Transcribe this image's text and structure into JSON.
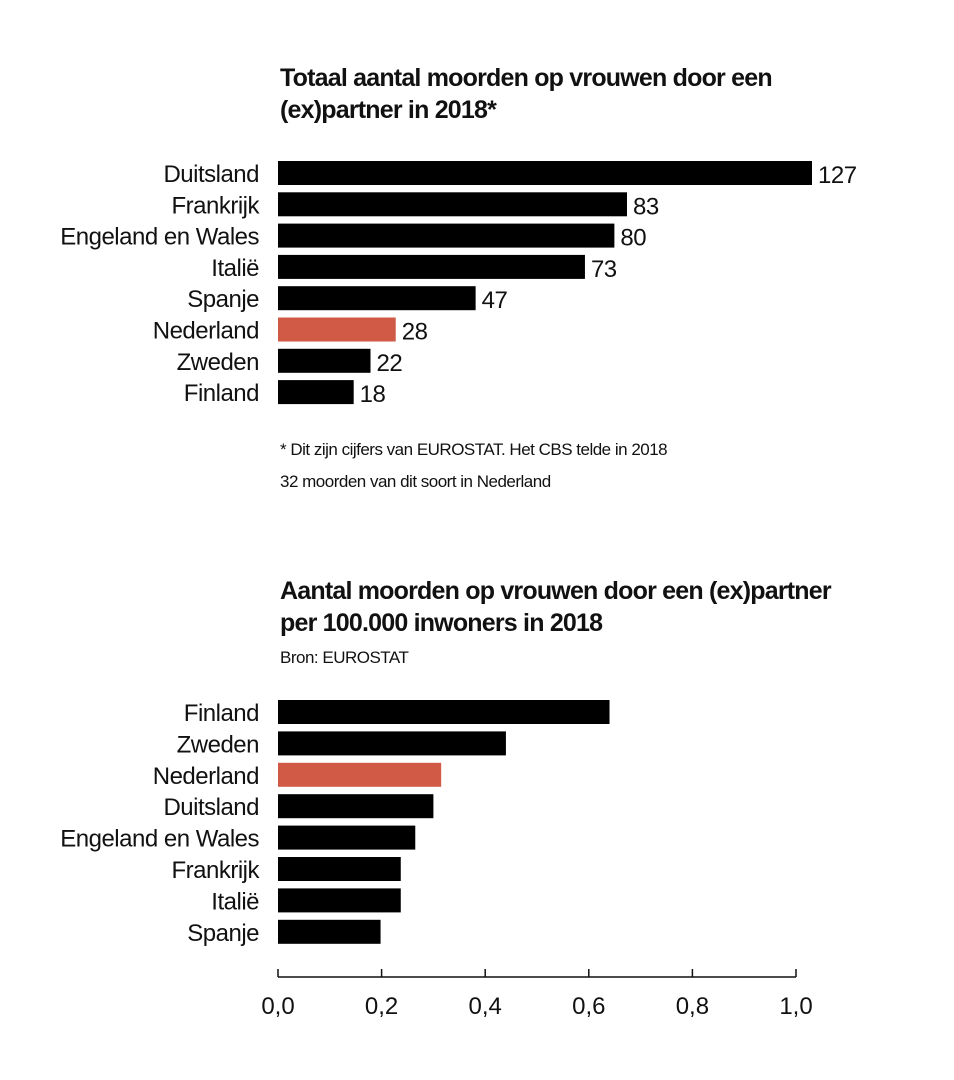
{
  "colors": {
    "bar": "#000000",
    "highlight": "#d05a45"
  },
  "chart_data": [
    {
      "type": "bar",
      "orientation": "horizontal",
      "title": "Totaal aantal moorden op vrouwen door een (ex)partner in 2018*",
      "categories": [
        "Duitsland",
        "Frankrijk",
        "Engeland en Wales",
        "Italië",
        "Spanje",
        "Nederland",
        "Zweden",
        "Finland"
      ],
      "values": [
        127,
        83,
        80,
        73,
        47,
        28,
        22,
        18
      ],
      "highlight": "Nederland",
      "data_labels": true,
      "xlim": [
        0,
        127
      ],
      "footnote_lines": [
        "* Dit zijn cijfers van EUROSTAT. Het CBS telde in 2018",
        "32 moorden van dit soort in Nederland"
      ]
    },
    {
      "type": "bar",
      "orientation": "horizontal",
      "title": "Aantal moorden op vrouwen door een (ex)partner per 100.000 inwoners in 2018",
      "source": "Bron: EUROSTAT",
      "categories": [
        "Finland",
        "Zweden",
        "Nederland",
        "Duitsland",
        "Engeland en Wales",
        "Frankrijk",
        "Italië",
        "Spanje"
      ],
      "values": [
        0.64,
        0.44,
        0.315,
        0.3,
        0.265,
        0.237,
        0.237,
        0.198
      ],
      "highlight": "Nederland",
      "data_labels": false,
      "xlim": [
        0,
        1.0
      ],
      "xticks": [
        "0,0",
        "0,2",
        "0,4",
        "0,6",
        "0,8",
        "1,0"
      ]
    }
  ]
}
